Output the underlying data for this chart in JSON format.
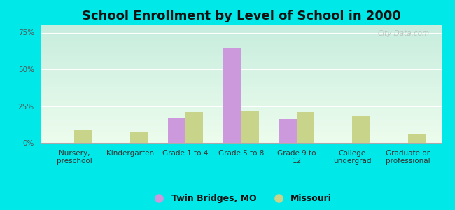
{
  "title": "School Enrollment by Level of School in 2000",
  "categories": [
    "Nursery,\npreschool",
    "Kindergarten",
    "Grade 1 to 4",
    "Grade 5 to 8",
    "Grade 9 to\n12",
    "College\nundergrad",
    "Graduate or\nprofessional"
  ],
  "twin_bridges": [
    0,
    0,
    17,
    65,
    16,
    0,
    0
  ],
  "missouri": [
    9,
    7,
    21,
    22,
    21,
    18,
    6
  ],
  "twin_bridges_color": "#cc99dd",
  "missouri_color": "#c8d48a",
  "background_color": "#00e8e8",
  "bar_width": 0.32,
  "ylim": [
    0,
    80
  ],
  "yticks": [
    0,
    25,
    50,
    75
  ],
  "ytick_labels": [
    "0%",
    "25%",
    "50%",
    "75%"
  ],
  "title_fontsize": 13,
  "tick_fontsize": 7.5,
  "legend_fontsize": 9,
  "legend_labels": [
    "Twin Bridges, MO",
    "Missouri"
  ],
  "watermark": "City-Data.com",
  "plot_bg_top": "#cce8e0",
  "plot_bg_bottom": "#eefaee"
}
